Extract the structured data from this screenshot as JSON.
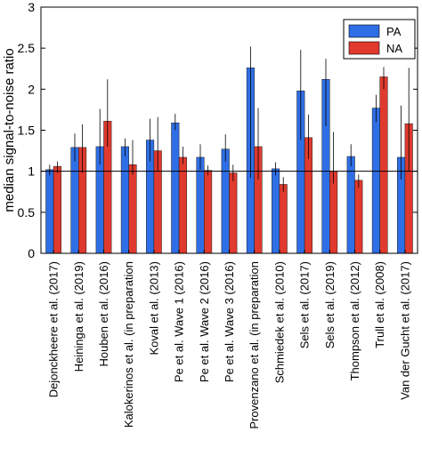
{
  "chart_data": {
    "type": "bar",
    "ylabel": "median signal-to-noise ratio",
    "xlabel": "",
    "ylim": [
      0,
      3
    ],
    "yticks": [
      0,
      0.5,
      1,
      1.5,
      2,
      2.5,
      3
    ],
    "ytick_labels": [
      "0",
      "0.5",
      "1",
      "1.5",
      "2",
      "2.5",
      "3"
    ],
    "reference_line": 1,
    "legend_position": "top-right",
    "categories": [
      "Dejonckheere et al. (2017)",
      "Heininga et al. (2019)",
      "Houben et al. (2016)",
      "Kalokerinos et al. (in preparation",
      "Koval et al. (2013)",
      "Pe et al. Wave 1 (2016)",
      "Pe et al. Wave 2 (2016)",
      "Pe et al. Wave 3 (2016)",
      "Provenzano et al. (in preparation",
      "Schmiedek et al. (2010)",
      "Sels et al. (2017)",
      "Sels et al. (2019)",
      "Thompson et al. (2012)",
      "Trull et al. (2008)",
      "Van der Gucht et al. (2017)"
    ],
    "series": [
      {
        "name": "PA",
        "color": "#2f6fe6",
        "values": [
          1.02,
          1.29,
          1.3,
          1.3,
          1.38,
          1.59,
          1.17,
          1.27,
          2.26,
          1.03,
          1.98,
          2.12,
          1.18,
          1.77,
          1.17
        ],
        "err_low": [
          0.95,
          1.12,
          1.08,
          1.18,
          1.12,
          1.5,
          1.02,
          1.12,
          0.92,
          0.95,
          1.38,
          1.55,
          1.06,
          1.6,
          0.9
        ],
        "err_high": [
          1.08,
          1.46,
          1.76,
          1.4,
          1.64,
          1.7,
          1.33,
          1.45,
          2.52,
          1.11,
          2.48,
          2.37,
          1.33,
          1.93,
          1.8
        ]
      },
      {
        "name": "NA",
        "color": "#e03a2e",
        "values": [
          1.06,
          1.29,
          1.61,
          1.08,
          1.25,
          1.17,
          1.01,
          0.98,
          1.3,
          0.84,
          1.41,
          1.0,
          0.89,
          2.15,
          1.58
        ],
        "err_low": [
          0.98,
          0.98,
          1.3,
          0.96,
          1.0,
          1.09,
          0.95,
          0.88,
          0.9,
          0.75,
          1.15,
          0.85,
          0.8,
          2.0,
          1.0
        ],
        "err_high": [
          1.12,
          1.57,
          2.12,
          1.38,
          1.66,
          1.3,
          1.07,
          1.08,
          1.77,
          0.93,
          1.69,
          1.48,
          0.96,
          2.27,
          2.26
        ]
      }
    ]
  }
}
